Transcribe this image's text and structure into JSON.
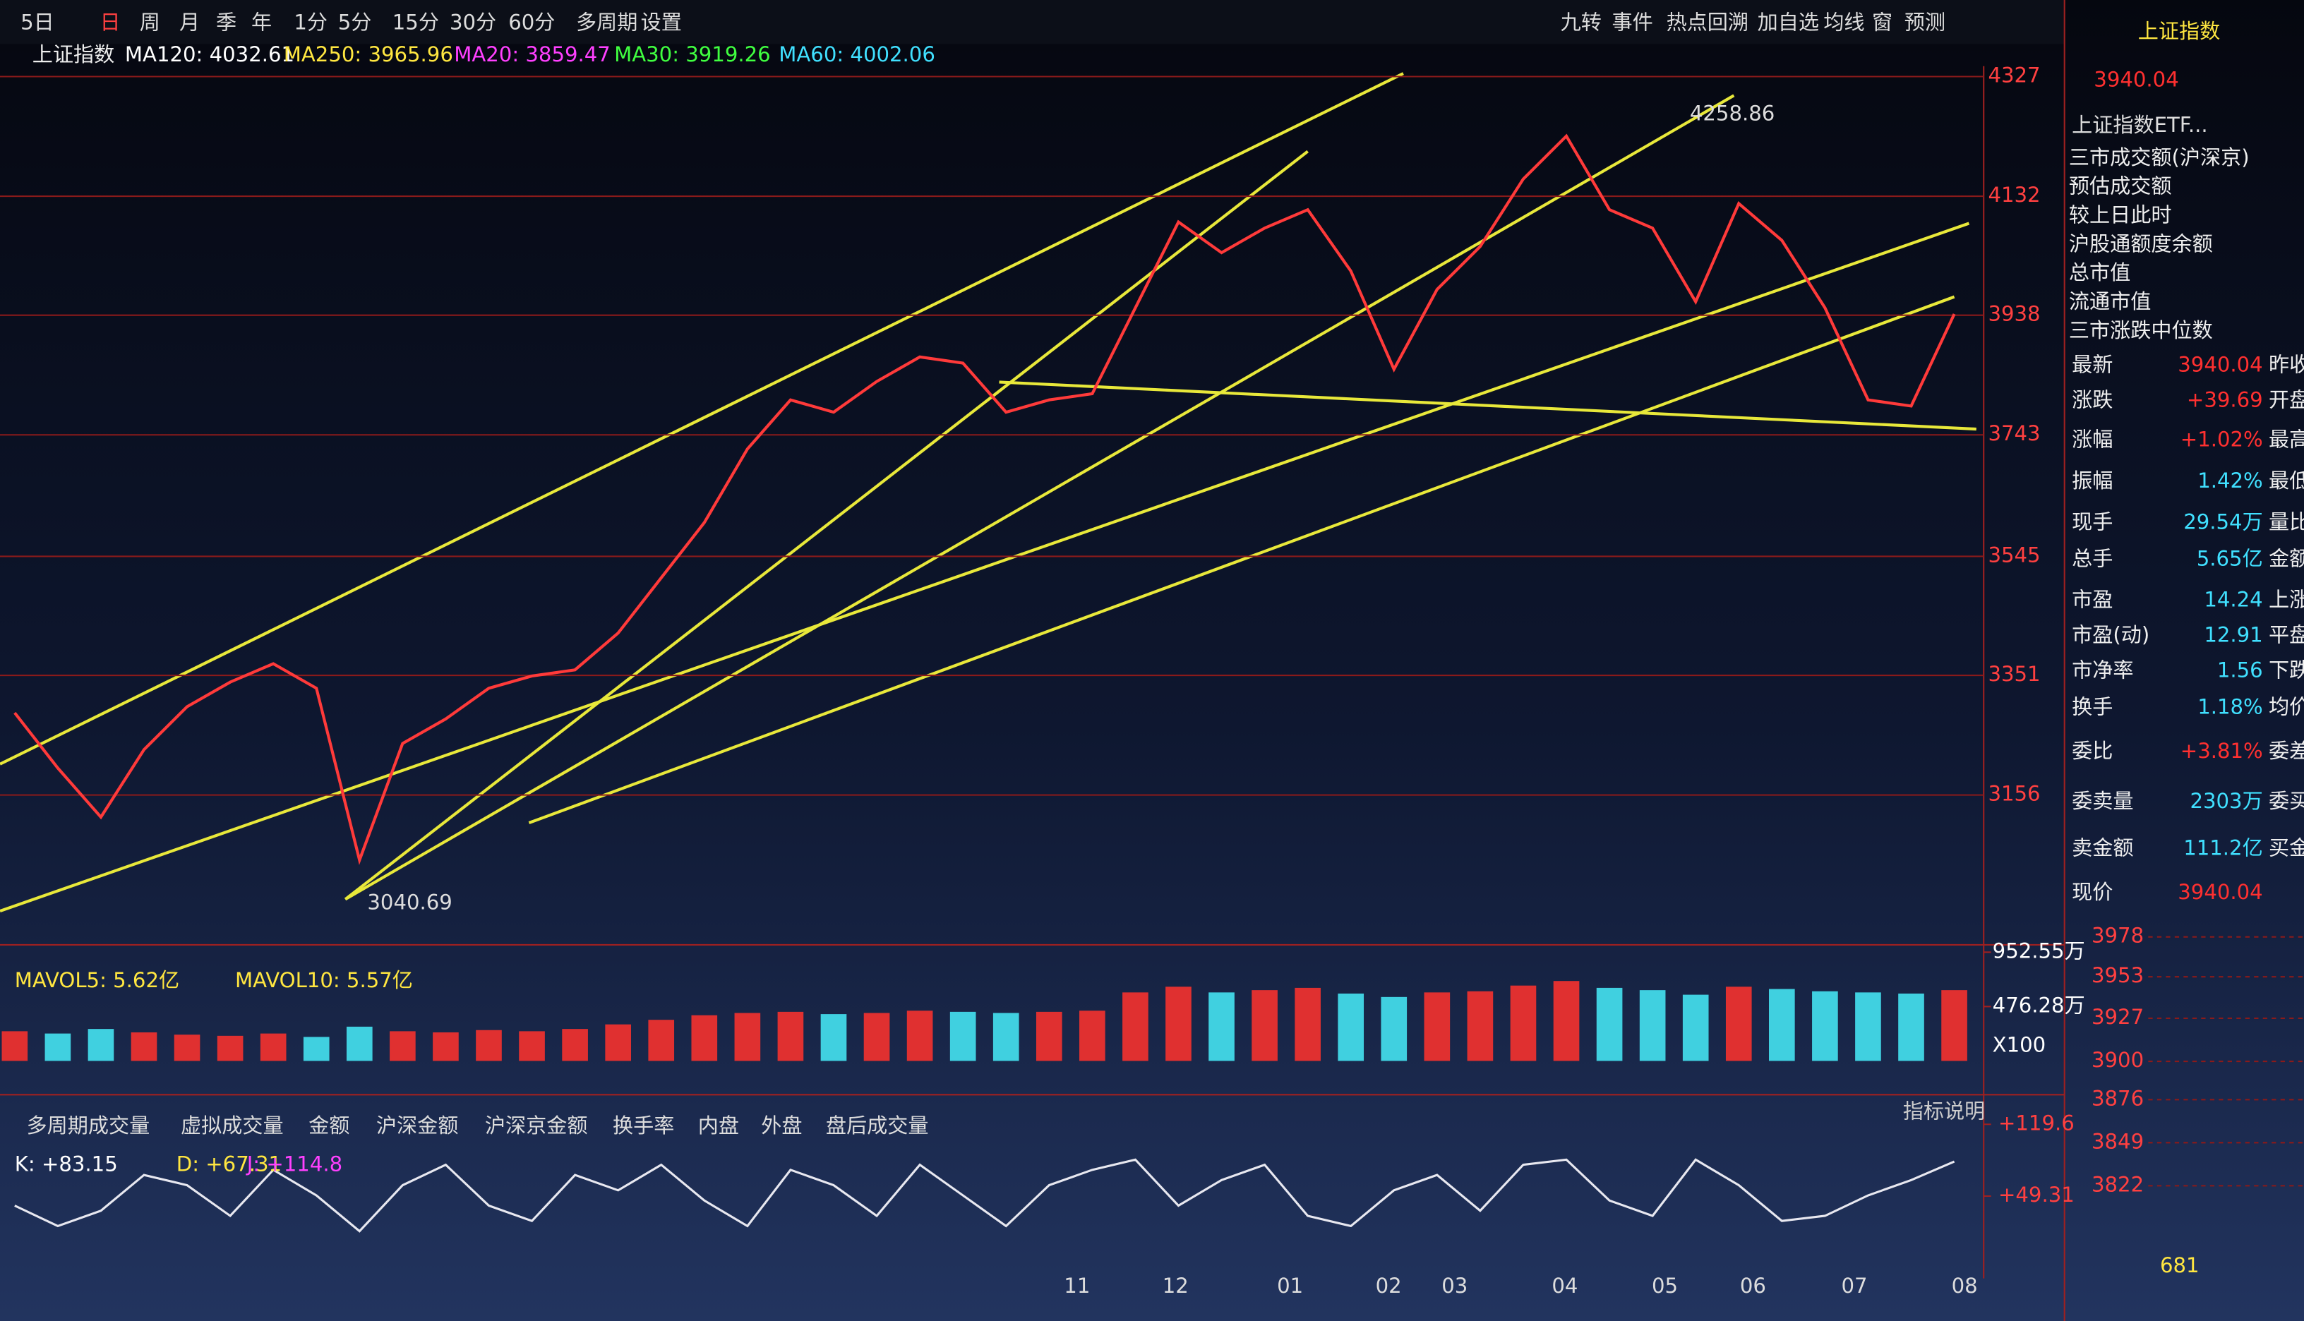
{
  "toolbar": {
    "left": [
      "5日",
      "日",
      "周",
      "月",
      "季",
      "年",
      "1分",
      "5分",
      "15分",
      "30分",
      "60分",
      "多周期",
      "设置"
    ],
    "right": [
      "九转",
      "事件",
      "热点回溯",
      "加自选",
      "均线",
      "窗",
      "预测"
    ]
  },
  "indicator_bar": {
    "name": "上证指数",
    "items": [
      "MA120: 4032.61",
      "MA250: 3965.96",
      "MA20: 3859.47",
      "MA30: 3919.26",
      "MA60: 4002.06"
    ]
  },
  "main_chart": {
    "type": "line",
    "ylim": [
      2919,
      4344
    ],
    "yticks": [
      3156,
      3351,
      3545,
      3743,
      3938,
      4132,
      4327
    ],
    "values": [
      3290,
      3200,
      3120,
      3230,
      3300,
      3340,
      3370,
      3330,
      3050,
      3240,
      3280,
      3330,
      3350,
      3360,
      3420,
      3510,
      3600,
      3720,
      3800,
      3780,
      3830,
      3870,
      3860,
      3780,
      3800,
      3810,
      3950,
      4090,
      4040,
      4080,
      4110,
      4010,
      3850,
      3980,
      4050,
      4160,
      4230,
      4110,
      4080,
      3960,
      4120,
      4060,
      3950,
      3800,
      3790,
      3940
    ],
    "high_label": 4258.86,
    "low_label": 3040.69
  },
  "volume": {
    "legend": [
      "MAVOL5: 5.62亿",
      "MAVOL10: 5.57亿"
    ],
    "ylim": [
      0,
      952.55
    ],
    "yticks": [
      {
        "value": 476.28,
        "label": "476.28万"
      },
      {
        "value": 952.55,
        "label": "952.55万"
      }
    ],
    "unit": "X100",
    "values": [
      260,
      240,
      280,
      250,
      230,
      220,
      240,
      210,
      300,
      260,
      250,
      270,
      260,
      280,
      320,
      360,
      400,
      420,
      430,
      410,
      420,
      440,
      430,
      420,
      430,
      440,
      600,
      650,
      600,
      620,
      640,
      590,
      560,
      600,
      610,
      660,
      700,
      640,
      620,
      580,
      650,
      630,
      610,
      600,
      590,
      620
    ]
  },
  "tabs": [
    "多周期成交量",
    "虚拟成交量",
    "金额",
    "沪深金额",
    "沪深京金额",
    "换手率",
    "内盘",
    "外盘",
    "盘后成交量"
  ],
  "tab_help": "指标说明",
  "kdj": {
    "legend": [
      "K: +83.15",
      "D: +67.31",
      "J: +114.8"
    ],
    "ylim": [
      -60,
      127
    ],
    "yticks": [
      {
        "value": 49.31,
        "label": "+49.31"
      },
      {
        "value": 119.6,
        "label": "+119.6"
      }
    ],
    "values": [
      40,
      20,
      35,
      70,
      60,
      30,
      75,
      50,
      15,
      60,
      80,
      40,
      25,
      70,
      55,
      80,
      45,
      20,
      75,
      60,
      30,
      80,
      50,
      20,
      60,
      75,
      85,
      40,
      65,
      80,
      30,
      20,
      55,
      70,
      35,
      80,
      85,
      45,
      30,
      85,
      60,
      25,
      30,
      50,
      65,
      83.15
    ]
  },
  "months": [
    "11",
    "12",
    "01",
    "02",
    "03",
    "04",
    "05",
    "06",
    "07",
    "08"
  ],
  "side_panel": {
    "title": "上证指数",
    "price": "3940.04",
    "etf": "上证指数ETF...",
    "list": [
      "三市成交额(沪深京)",
      "预估成交额",
      "较上日此时",
      "沪股通额度余额",
      "总市值",
      "流通市值",
      "三市涨跌中位数"
    ],
    "rows": [
      [
        "最新",
        "3940.04",
        "昨收"
      ],
      [
        "涨跌",
        "+39.69",
        "开盘"
      ],
      [
        "涨幅",
        "+1.02%",
        "最高"
      ],
      [
        "振幅",
        "1.42%",
        "最低"
      ],
      [
        "现手",
        "29.54万",
        "量比"
      ],
      [
        "总手",
        "5.65亿",
        "金额"
      ],
      [
        "市盈",
        "14.24",
        "上涨"
      ],
      [
        "市盈(动)",
        "12.91",
        "平盘"
      ],
      [
        "市净率",
        "1.56",
        "下跌"
      ],
      [
        "换手",
        "1.18%",
        "均价"
      ],
      [
        "委比",
        "+3.81%",
        "委差"
      ],
      [
        "委卖量",
        "2303万",
        "委买"
      ],
      [
        "卖金额",
        "111.2亿",
        "买金额"
      ],
      [
        "现价",
        "3940.04",
        ""
      ]
    ]
  },
  "intraday": {
    "ylim": [
      3810,
      3985
    ],
    "yticks": [
      3822,
      3849,
      3876,
      3900,
      3927,
      3953,
      3978
    ],
    "volume_tick": 681
  }
}
